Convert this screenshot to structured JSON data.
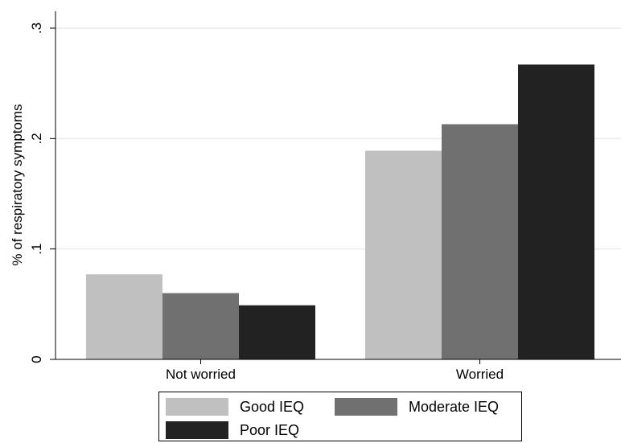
{
  "chart_data": {
    "type": "bar",
    "title": "",
    "xlabel": "",
    "ylabel": "% of respiratory symptoms",
    "ylim": [
      0,
      0.3
    ],
    "yticks": [
      0,
      0.1,
      0.2,
      0.3
    ],
    "ytick_labels": [
      "0",
      ".1",
      ".2",
      ".3"
    ],
    "categories": [
      "Not worried",
      "Worried"
    ],
    "series": [
      {
        "name": "Good IEQ",
        "color": "#c0c0c0",
        "values": [
          0.077,
          0.189
        ]
      },
      {
        "name": "Moderate IEQ",
        "color": "#707070",
        "values": [
          0.06,
          0.213
        ]
      },
      {
        "name": "Poor IEQ",
        "color": "#222222",
        "values": [
          0.049,
          0.267
        ]
      }
    ],
    "grid": true,
    "legend_position": "bottom"
  }
}
